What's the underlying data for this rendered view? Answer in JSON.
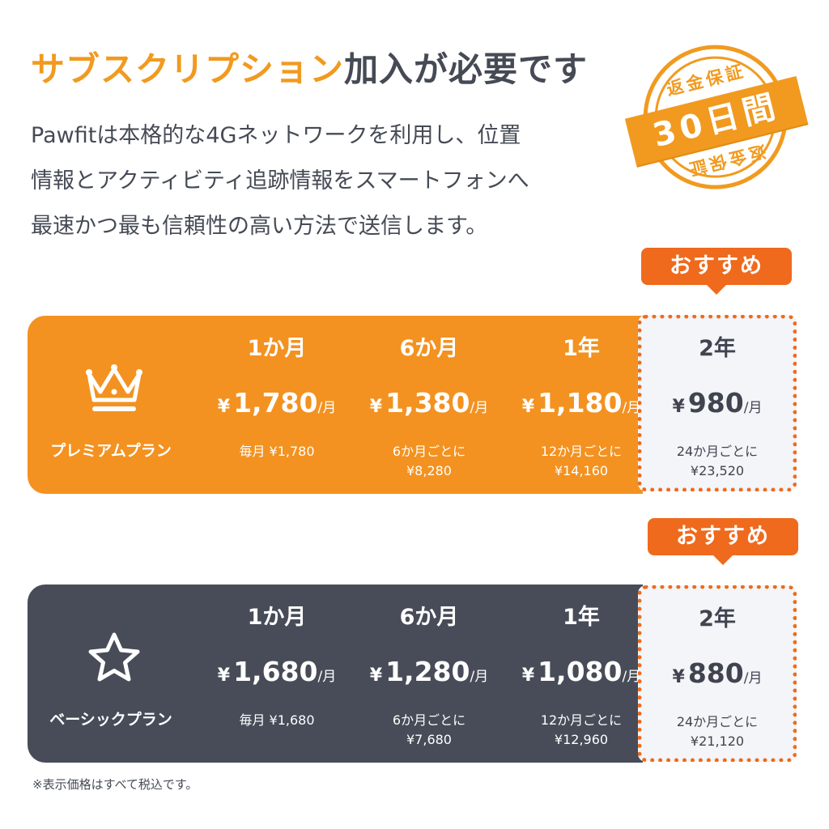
{
  "header": {
    "title_accent": "サブスクリプション",
    "title_rest": "加入が必要です",
    "description_lines": [
      "Pawfitは本格的な4Gネットワークを利用し、位置",
      "情報とアクティビティ追跡情報をスマートフォンへ",
      "最速かつ最も信頼性の高い方法で送信します。"
    ]
  },
  "stamp": {
    "top_text": "返金保証",
    "band_text": "30日間",
    "bottom_text": "返金保証"
  },
  "badge_label": "おすすめ",
  "currency_symbol": "¥",
  "per_month_unit": "/月",
  "plans": [
    {
      "name": "プレミアムプラン",
      "icon": "crown-icon",
      "columns": [
        {
          "period": "1か月",
          "price": "1,780",
          "note_line1": "毎月 ¥1,780",
          "note_line2": ""
        },
        {
          "period": "6か月",
          "price": "1,380",
          "note_line1": "6か月ごとに",
          "note_line2": "¥8,280"
        },
        {
          "period": "1年",
          "price": "1,180",
          "note_line1": "12か月ごとに",
          "note_line2": "¥14,160"
        },
        {
          "period": "2年",
          "price": "980",
          "note_line1": "24か月ごとに",
          "note_line2": "¥23,520"
        }
      ]
    },
    {
      "name": "ベーシックプラン",
      "icon": "star-icon",
      "columns": [
        {
          "period": "1か月",
          "price": "1,680",
          "note_line1": "毎月 ¥1,680",
          "note_line2": ""
        },
        {
          "period": "6か月",
          "price": "1,280",
          "note_line1": "6か月ごとに",
          "note_line2": "¥7,680"
        },
        {
          "period": "1年",
          "price": "1,080",
          "note_line1": "12か月ごとに",
          "note_line2": "¥12,960"
        },
        {
          "period": "2年",
          "price": "880",
          "note_line1": "24か月ごとに",
          "note_line2": "¥21,120"
        }
      ]
    }
  ],
  "footnote": "※表示価格はすべて税込です。",
  "colors": {
    "accent_orange": "#f19a1f",
    "badge_orange": "#ef6a1c",
    "premium_bg": "#f39220",
    "basic_bg": "#474c58",
    "highlight_bg": "#f4f5f8"
  }
}
